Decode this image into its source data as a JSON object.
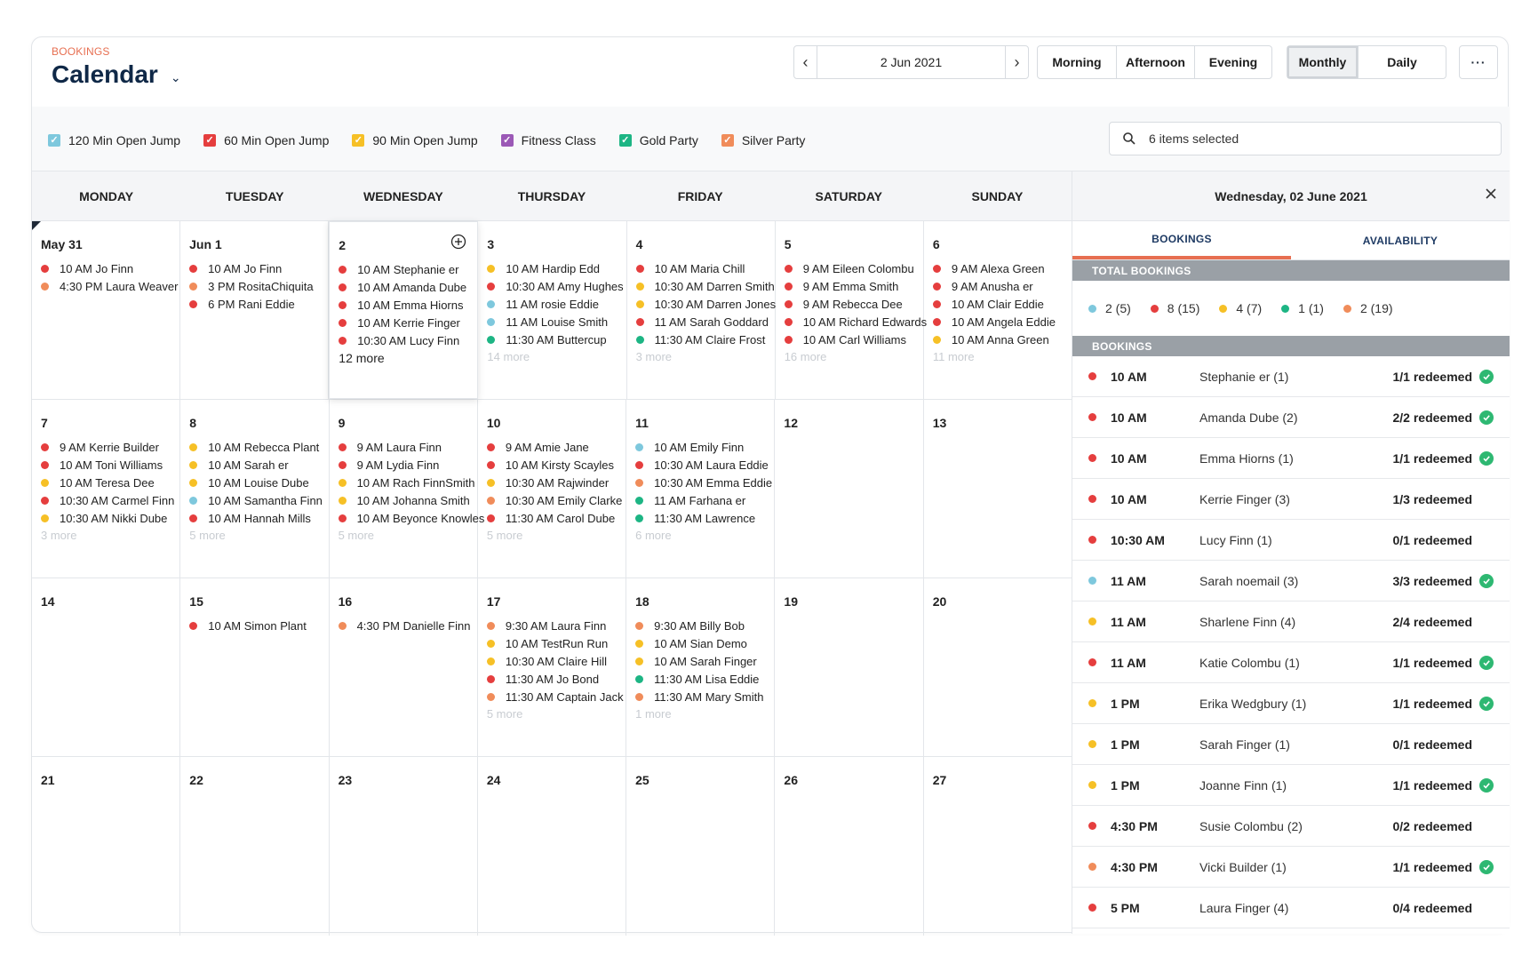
{
  "header": {
    "kicker": "BOOKINGS",
    "title": "Calendar",
    "date": "2 Jun 2021"
  },
  "periods": [
    "Morning",
    "Afternoon",
    "Evening"
  ],
  "views": [
    {
      "label": "Monthly",
      "active": true
    },
    {
      "label": "Daily",
      "active": false
    }
  ],
  "more_label": "···",
  "legend": [
    {
      "label": "120 Min Open Jump",
      "color": "#7ec8dd"
    },
    {
      "label": "60 Min Open Jump",
      "color": "#e53e3e"
    },
    {
      "label": "90 Min Open Jump",
      "color": "#f6c026"
    },
    {
      "label": "Fitness Class",
      "color": "#9b59b6"
    },
    {
      "label": "Gold Party",
      "color": "#1db584"
    },
    {
      "label": "Silver Party",
      "color": "#f08c5a"
    }
  ],
  "search": {
    "value": "6 items selected"
  },
  "weekdays": [
    "MONDAY",
    "TUESDAY",
    "WEDNESDAY",
    "THURSDAY",
    "FRIDAY",
    "SATURDAY",
    "SUNDAY"
  ],
  "weeks": [
    [
      {
        "day": "May 31",
        "events": [
          {
            "t": "10 AM Jo Finn",
            "c": "#e53e3e"
          },
          {
            "t": "4:30 PM Laura Weaver",
            "c": "#f08c5a"
          }
        ],
        "more": ""
      },
      {
        "day": "Jun 1",
        "events": [
          {
            "t": "10 AM Jo Finn",
            "c": "#e53e3e"
          },
          {
            "t": "3 PM RositaChiquita",
            "c": "#f08c5a"
          },
          {
            "t": "6 PM Rani Eddie",
            "c": "#e53e3e"
          }
        ],
        "more": ""
      },
      {
        "day": "2",
        "today": true,
        "events": [
          {
            "t": "10 AM Stephanie er",
            "c": "#e53e3e"
          },
          {
            "t": "10 AM Amanda Dube",
            "c": "#e53e3e"
          },
          {
            "t": "10 AM Emma Hiorns",
            "c": "#e53e3e"
          },
          {
            "t": "10 AM Kerrie Finger",
            "c": "#e53e3e"
          },
          {
            "t": "10:30 AM Lucy Finn",
            "c": "#e53e3e"
          }
        ],
        "more": "12 more"
      },
      {
        "day": "3",
        "events": [
          {
            "t": "10 AM Hardip Edd",
            "c": "#f6c026"
          },
          {
            "t": "10:30 AM Amy Hughes",
            "c": "#e53e3e"
          },
          {
            "t": "11 AM rosie Eddie",
            "c": "#7ec8dd"
          },
          {
            "t": "11 AM Louise Smith",
            "c": "#7ec8dd"
          },
          {
            "t": "11:30 AM Buttercup",
            "c": "#1db584"
          }
        ],
        "more": "14 more"
      },
      {
        "day": "4",
        "events": [
          {
            "t": "10 AM Maria Chill",
            "c": "#e53e3e"
          },
          {
            "t": "10:30 AM Darren Smith",
            "c": "#f6c026"
          },
          {
            "t": "10:30 AM Darren Jones",
            "c": "#f6c026"
          },
          {
            "t": "11 AM Sarah Goddard",
            "c": "#e53e3e"
          },
          {
            "t": "11:30 AM Claire Frost",
            "c": "#1db584"
          }
        ],
        "more": "3 more"
      },
      {
        "day": "5",
        "events": [
          {
            "t": "9 AM Eileen Colombu",
            "c": "#e53e3e"
          },
          {
            "t": "9 AM Emma Smith",
            "c": "#e53e3e"
          },
          {
            "t": "9 AM Rebecca Dee",
            "c": "#e53e3e"
          },
          {
            "t": "10 AM Richard Edwards",
            "c": "#e53e3e"
          },
          {
            "t": "10 AM Carl Williams",
            "c": "#e53e3e"
          }
        ],
        "more": "16 more"
      },
      {
        "day": "6",
        "events": [
          {
            "t": "9 AM Alexa Green",
            "c": "#e53e3e"
          },
          {
            "t": "9 AM Anusha er",
            "c": "#e53e3e"
          },
          {
            "t": "10 AM Clair Eddie",
            "c": "#e53e3e"
          },
          {
            "t": "10 AM Angela Eddie",
            "c": "#e53e3e"
          },
          {
            "t": "10 AM Anna Green",
            "c": "#f6c026"
          }
        ],
        "more": "11 more"
      }
    ],
    [
      {
        "day": "7",
        "events": [
          {
            "t": "9 AM Kerrie Builder",
            "c": "#e53e3e"
          },
          {
            "t": "10 AM Toni Williams",
            "c": "#e53e3e"
          },
          {
            "t": "10 AM Teresa Dee",
            "c": "#f6c026"
          },
          {
            "t": "10:30 AM Carmel Finn",
            "c": "#e53e3e"
          },
          {
            "t": "10:30 AM Nikki Dube",
            "c": "#f6c026"
          }
        ],
        "more": "3 more"
      },
      {
        "day": "8",
        "events": [
          {
            "t": "10 AM Rebecca Plant",
            "c": "#f6c026"
          },
          {
            "t": "10 AM Sarah er",
            "c": "#f6c026"
          },
          {
            "t": "10 AM Louise Dube",
            "c": "#f6c026"
          },
          {
            "t": "10 AM Samantha Finn",
            "c": "#7ec8dd"
          },
          {
            "t": "10 AM Hannah Mills",
            "c": "#e53e3e"
          }
        ],
        "more": "5 more"
      },
      {
        "day": "9",
        "events": [
          {
            "t": "9 AM Laura Finn",
            "c": "#e53e3e"
          },
          {
            "t": "9 AM Lydia Finn",
            "c": "#e53e3e"
          },
          {
            "t": "10 AM Rach FinnSmith",
            "c": "#f6c026"
          },
          {
            "t": "10 AM Johanna Smith",
            "c": "#f6c026"
          },
          {
            "t": "10 AM Beyonce Knowles",
            "c": "#e53e3e"
          }
        ],
        "more": "5 more"
      },
      {
        "day": "10",
        "events": [
          {
            "t": "9 AM Amie Jane",
            "c": "#e53e3e"
          },
          {
            "t": "10 AM Kirsty Scayles",
            "c": "#e53e3e"
          },
          {
            "t": "10:30 AM Rajwinder",
            "c": "#f6c026"
          },
          {
            "t": "10:30 AM Emily Clarke",
            "c": "#f08c5a"
          },
          {
            "t": "11:30 AM Carol Dube",
            "c": "#e53e3e"
          }
        ],
        "more": "5 more"
      },
      {
        "day": "11",
        "events": [
          {
            "t": "10 AM Emily Finn",
            "c": "#7ec8dd"
          },
          {
            "t": "10:30 AM Laura Eddie",
            "c": "#e53e3e"
          },
          {
            "t": "10:30 AM Emma Eddie",
            "c": "#f08c5a"
          },
          {
            "t": "11 AM Farhana er",
            "c": "#1db584"
          },
          {
            "t": "11:30 AM Lawrence",
            "c": "#1db584"
          }
        ],
        "more": "6 more"
      },
      {
        "day": "12",
        "events": [],
        "more": ""
      },
      {
        "day": "13",
        "events": [],
        "more": ""
      }
    ],
    [
      {
        "day": "14",
        "events": [],
        "more": ""
      },
      {
        "day": "15",
        "events": [
          {
            "t": "10 AM Simon Plant",
            "c": "#e53e3e"
          }
        ],
        "more": ""
      },
      {
        "day": "16",
        "events": [
          {
            "t": "4:30 PM Danielle Finn",
            "c": "#f08c5a"
          }
        ],
        "more": ""
      },
      {
        "day": "17",
        "events": [
          {
            "t": "9:30 AM Laura Finn",
            "c": "#f08c5a"
          },
          {
            "t": "10 AM TestRun Run",
            "c": "#f6c026"
          },
          {
            "t": "10:30 AM Claire Hill",
            "c": "#f6c026"
          },
          {
            "t": "11:30 AM Jo Bond",
            "c": "#e53e3e"
          },
          {
            "t": "11:30 AM Captain Jack",
            "c": "#f08c5a"
          }
        ],
        "more": "5 more"
      },
      {
        "day": "18",
        "events": [
          {
            "t": "9:30 AM Billy Bob",
            "c": "#f08c5a"
          },
          {
            "t": "10 AM Sian Demo",
            "c": "#f6c026"
          },
          {
            "t": "10 AM Sarah Finger",
            "c": "#f6c026"
          },
          {
            "t": "11:30 AM Lisa Eddie",
            "c": "#1db584"
          },
          {
            "t": "11:30 AM Mary Smith",
            "c": "#f08c5a"
          }
        ],
        "more": "1 more"
      },
      {
        "day": "19",
        "events": [],
        "more": ""
      },
      {
        "day": "20",
        "events": [],
        "more": ""
      }
    ],
    [
      {
        "day": "21",
        "events": [],
        "more": ""
      },
      {
        "day": "22",
        "events": [],
        "more": ""
      },
      {
        "day": "23",
        "events": [],
        "more": ""
      },
      {
        "day": "24",
        "events": [],
        "more": ""
      },
      {
        "day": "25",
        "events": [],
        "more": ""
      },
      {
        "day": "26",
        "events": [],
        "more": ""
      },
      {
        "day": "27",
        "events": [],
        "more": ""
      }
    ]
  ],
  "panel": {
    "date": "Wednesday, 02 June 2021",
    "tabs": [
      {
        "label": "BOOKINGS",
        "active": true
      },
      {
        "label": "AVAILABILITY",
        "active": false
      }
    ],
    "total_title": "TOTAL BOOKINGS",
    "totals": [
      {
        "v": "2 (5)",
        "c": "#7ec8dd"
      },
      {
        "v": "8 (15)",
        "c": "#e53e3e"
      },
      {
        "v": "4 (7)",
        "c": "#f6c026"
      },
      {
        "v": "1 (1)",
        "c": "#1db584"
      },
      {
        "v": "2 (19)",
        "c": "#f08c5a"
      }
    ],
    "bookings_title": "BOOKINGS",
    "bookings": [
      {
        "time": "10 AM",
        "name": "Stephanie er (1)",
        "red": "1/1 redeemed",
        "ok": true,
        "c": "#e53e3e"
      },
      {
        "time": "10 AM",
        "name": "Amanda Dube (2)",
        "red": "2/2 redeemed",
        "ok": true,
        "c": "#e53e3e"
      },
      {
        "time": "10 AM",
        "name": "Emma Hiorns (1)",
        "red": "1/1 redeemed",
        "ok": true,
        "c": "#e53e3e"
      },
      {
        "time": "10 AM",
        "name": "Kerrie Finger (3)",
        "red": "1/3 redeemed",
        "ok": false,
        "c": "#e53e3e"
      },
      {
        "time": "10:30 AM",
        "name": "Lucy Finn (1)",
        "red": "0/1 redeemed",
        "ok": false,
        "c": "#e53e3e"
      },
      {
        "time": "11 AM",
        "name": "Sarah noemail (3)",
        "red": "3/3 redeemed",
        "ok": true,
        "c": "#7ec8dd"
      },
      {
        "time": "11 AM",
        "name": "Sharlene Finn (4)",
        "red": "2/4 redeemed",
        "ok": false,
        "c": "#f6c026"
      },
      {
        "time": "11 AM",
        "name": "Katie Colombu (1)",
        "red": "1/1 redeemed",
        "ok": true,
        "c": "#e53e3e"
      },
      {
        "time": "1 PM",
        "name": "Erika Wedgbury (1)",
        "red": "1/1 redeemed",
        "ok": true,
        "c": "#f6c026"
      },
      {
        "time": "1 PM",
        "name": "Sarah Finger (1)",
        "red": "0/1 redeemed",
        "ok": false,
        "c": "#f6c026"
      },
      {
        "time": "1 PM",
        "name": "Joanne Finn (1)",
        "red": "1/1 redeemed",
        "ok": true,
        "c": "#f6c026"
      },
      {
        "time": "4:30 PM",
        "name": "Susie Colombu (2)",
        "red": "0/2 redeemed",
        "ok": false,
        "c": "#e53e3e"
      },
      {
        "time": "4:30 PM",
        "name": "Vicki Builder (1)",
        "red": "1/1 redeemed",
        "ok": true,
        "c": "#f08c5a"
      },
      {
        "time": "5 PM",
        "name": "Laura Finger (4)",
        "red": "0/4 redeemed",
        "ok": false,
        "c": "#e53e3e"
      }
    ]
  }
}
